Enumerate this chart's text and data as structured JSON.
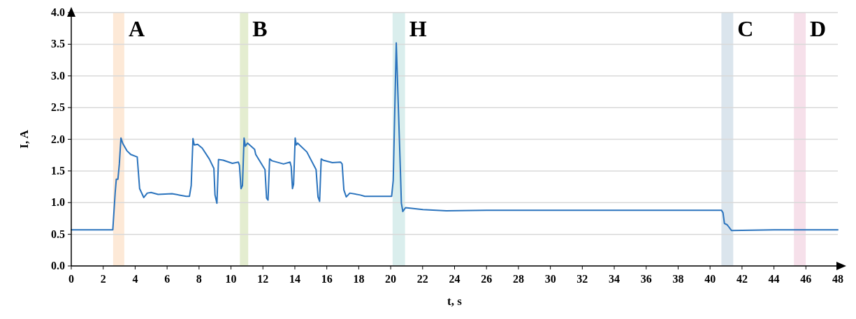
{
  "chart_data": {
    "type": "line",
    "xlabel": "t, s",
    "ylabel": "I, A",
    "xlim": [
      0,
      48
    ],
    "ylim": [
      0,
      4
    ],
    "xticks": [
      0,
      2,
      4,
      6,
      8,
      10,
      12,
      14,
      16,
      18,
      20,
      22,
      24,
      26,
      28,
      30,
      32,
      34,
      36,
      38,
      40,
      42,
      44,
      46,
      48
    ],
    "yticks": [
      {
        "value": 0,
        "label": "0.0"
      },
      {
        "value": 0.5,
        "label": "0.5"
      },
      {
        "value": 1,
        "label": "1.0"
      },
      {
        "value": 1.5,
        "label": "1.5"
      },
      {
        "value": 2,
        "label": "2.0"
      },
      {
        "value": 2.5,
        "label": "2.5"
      },
      {
        "value": 3,
        "label": "3.0"
      },
      {
        "value": 3.5,
        "label": "3.5"
      },
      {
        "value": 4,
        "label": "4.0"
      }
    ],
    "grid": "y",
    "line_style": "solid",
    "marker": "none",
    "bands": [
      {
        "axis": "x",
        "from": 2.62,
        "to": 3.32,
        "label": "A",
        "color": "#fde5d0"
      },
      {
        "axis": "x",
        "from": 10.56,
        "to": 11.08,
        "label": "B",
        "color": "#dfeac8"
      },
      {
        "axis": "x",
        "from": 20.12,
        "to": 20.9,
        "label": "H",
        "color": "#d3ebea"
      },
      {
        "axis": "x",
        "from": 40.71,
        "to": 41.45,
        "label": "C",
        "color": "#d5e0ea"
      },
      {
        "axis": "x",
        "from": 45.25,
        "to": 45.99,
        "label": "D",
        "color": "#f5dbe6"
      }
    ],
    "series": [
      {
        "color": "#2a73bd",
        "x": [
          0,
          1,
          2,
          2.6,
          2.75,
          2.82,
          2.92,
          3.01,
          3.11,
          3.23,
          3.48,
          3.72,
          4.13,
          4.28,
          4.54,
          4.76,
          5.0,
          5.44,
          6.31,
          7.19,
          7.4,
          7.51,
          7.62,
          7.7,
          7.91,
          8.2,
          8.64,
          8.93,
          9.0,
          9.12,
          9.22,
          9.51,
          10.09,
          10.46,
          10.53,
          10.63,
          10.72,
          10.82,
          10.9,
          11.04,
          11.48,
          11.55,
          12.13,
          12.23,
          12.32,
          12.42,
          12.57,
          13.29,
          13.7,
          13.77,
          13.85,
          13.92,
          14.02,
          14.09,
          14.17,
          14.75,
          15.33,
          15.45,
          15.55,
          15.65,
          15.77,
          16.35,
          16.86,
          16.96,
          17.07,
          17.22,
          17.44,
          18.1,
          18.38,
          20.06,
          20.16,
          20.35,
          20.61,
          20.67,
          20.76,
          20.93,
          22.02,
          23.48,
          26,
          30,
          34,
          38,
          40.71,
          40.81,
          40.9,
          41.07,
          41.34,
          44,
          48
        ],
        "values": [
          0.57,
          0.57,
          0.57,
          0.57,
          1.16,
          1.37,
          1.37,
          1.61,
          2.02,
          1.93,
          1.82,
          1.76,
          1.72,
          1.22,
          1.08,
          1.15,
          1.16,
          1.13,
          1.14,
          1.1,
          1.1,
          1.27,
          2.01,
          1.91,
          1.92,
          1.86,
          1.69,
          1.54,
          1.12,
          0.99,
          1.68,
          1.67,
          1.62,
          1.64,
          1.59,
          1.22,
          1.27,
          2.02,
          1.89,
          1.94,
          1.84,
          1.76,
          1.52,
          1.07,
          1.04,
          1.69,
          1.66,
          1.61,
          1.64,
          1.57,
          1.22,
          1.29,
          2.02,
          1.91,
          1.94,
          1.8,
          1.52,
          1.09,
          1.02,
          1.69,
          1.67,
          1.63,
          1.64,
          1.61,
          1.2,
          1.09,
          1.15,
          1.12,
          1.1,
          1.1,
          1.35,
          3.52,
          1.5,
          0.99,
          0.86,
          0.92,
          0.89,
          0.87,
          0.88,
          0.88,
          0.88,
          0.88,
          0.88,
          0.84,
          0.67,
          0.65,
          0.56,
          0.57,
          0.57
        ]
      }
    ]
  }
}
